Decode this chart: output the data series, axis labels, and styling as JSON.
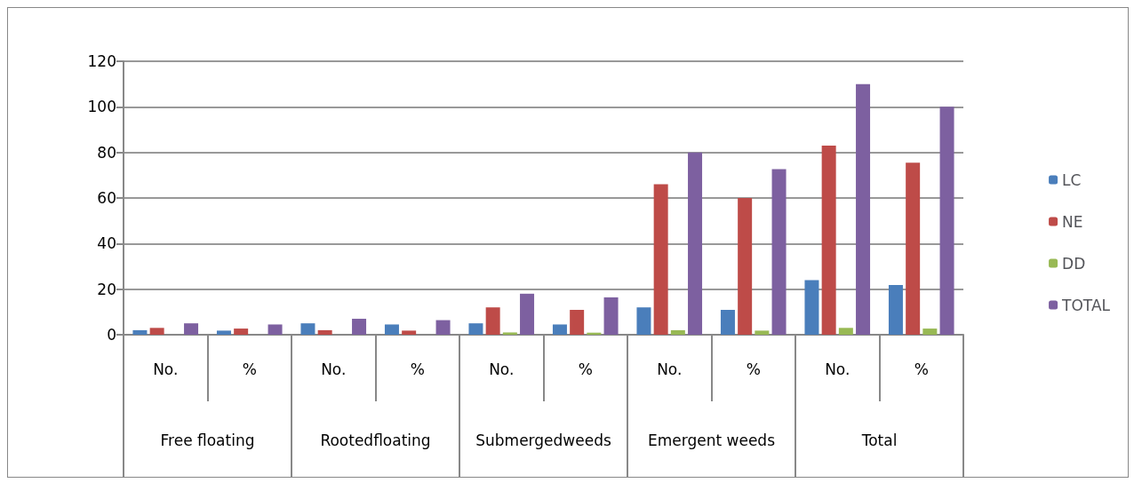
{
  "chart_data": {
    "type": "bar",
    "categories": [
      "No.",
      "%",
      "No.",
      "%",
      "No.",
      "%",
      "No.",
      "%",
      "No.",
      "%"
    ],
    "annotations": [
      "Free floating",
      "Rootedfloating",
      "Submergedweeds",
      "Emergent weeds",
      "Total"
    ],
    "series": [
      {
        "name": "LC",
        "color": "#4a7ebb",
        "values": [
          2,
          1.8,
          5,
          4.5,
          5,
          4.5,
          12,
          10.9,
          24,
          21.8
        ]
      },
      {
        "name": "NE",
        "color": "#be4b48",
        "values": [
          3,
          2.7,
          2,
          1.8,
          12,
          10.9,
          66,
          60,
          83,
          75.5
        ]
      },
      {
        "name": "DD",
        "color": "#98b954",
        "values": [
          0,
          0,
          0,
          0,
          1,
          0.9,
          2,
          1.8,
          3,
          2.7
        ]
      },
      {
        "name": "TOTAL",
        "color": "#7d60a0",
        "values": [
          5,
          4.5,
          7,
          6.4,
          18,
          16.4,
          80,
          72.7,
          110,
          100
        ]
      }
    ],
    "ylim": [
      0,
      120
    ],
    "yticks": [
      0,
      20,
      40,
      60,
      80,
      100,
      120
    ],
    "grid": "y",
    "legend": "right"
  }
}
